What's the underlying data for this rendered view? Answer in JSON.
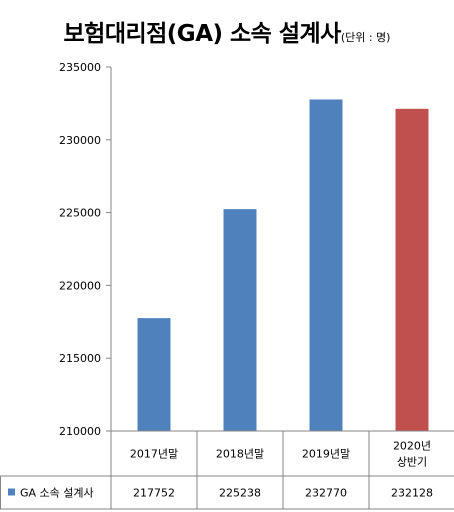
{
  "chart_data": {
    "type": "bar",
    "title": "보험대리점(GA) 소속 설계사",
    "subtitle": "(단위 : 명)",
    "categories": [
      [
        "2017년말"
      ],
      [
        "2018년말"
      ],
      [
        "2019년말"
      ],
      [
        "2020년",
        "상반기"
      ]
    ],
    "series": [
      {
        "name": "GA 소속 설계사",
        "values": [
          217752,
          225238,
          232770,
          232128
        ]
      }
    ],
    "ylim": [
      210000,
      235000
    ],
    "yticks": [
      210000,
      215000,
      220000,
      225000,
      230000,
      235000
    ],
    "grid": false,
    "legend": "data-table",
    "colors": {
      "default": "#4F81BD",
      "highlight": "#C0504D"
    },
    "highlight_index": 3
  }
}
